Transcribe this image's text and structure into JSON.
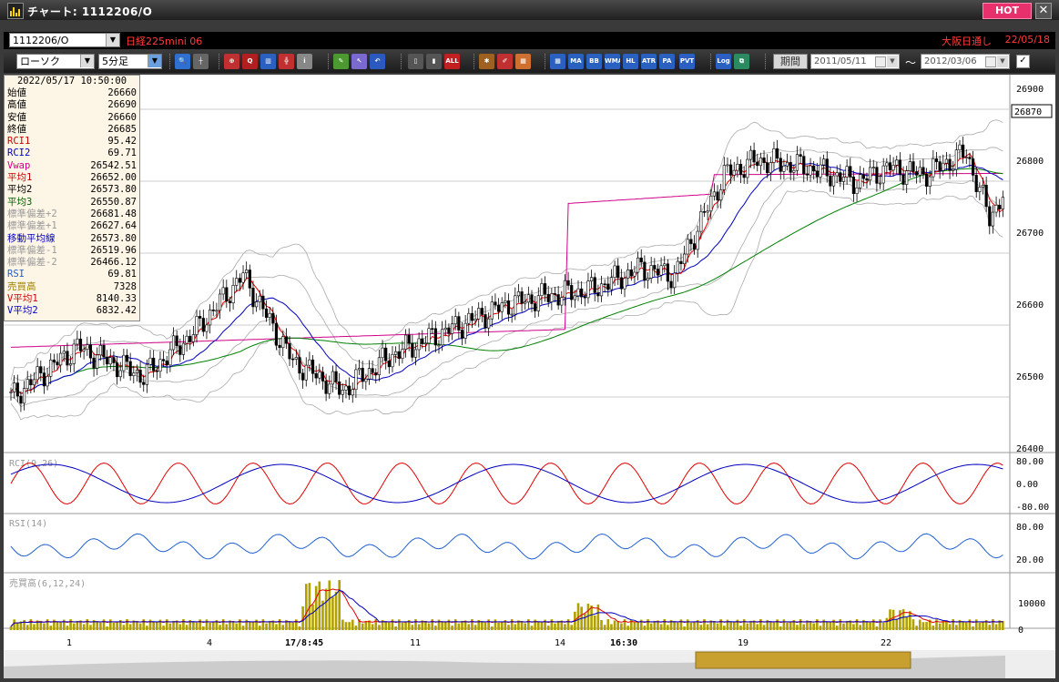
{
  "window": {
    "title": "チャート: 1112206/O",
    "hot_label": "HOT",
    "close_label": "✕"
  },
  "symbol_bar": {
    "code": "1112206/O",
    "name": "日経225mini 06",
    "market": "大阪日通し",
    "date": "22/05/18"
  },
  "toolbar": {
    "chart_type": "ローソク",
    "interval": "5分足",
    "period_label": "期間",
    "start_date": "2011/05/11",
    "end_date": "2012/03/06",
    "tilde": "〜",
    "check": "✓",
    "buttons": [
      {
        "name": "zoom-icon",
        "text": "🔍",
        "color": "#2f6fd0"
      },
      {
        "name": "crosshair-icon",
        "text": "┼",
        "color": "#666"
      },
      {
        "name": "pin-icon",
        "text": "⊕",
        "color": "#c03030"
      },
      {
        "name": "search-chart-icon",
        "text": "Q",
        "color": "#b02020"
      },
      {
        "name": "bars-icon",
        "text": "▥",
        "color": "#2a60c0"
      },
      {
        "name": "grid-icon",
        "text": "╬",
        "color": "#c03030"
      },
      {
        "name": "info-icon",
        "text": "i",
        "color": "#888"
      },
      {
        "name": "pen-icon",
        "text": "✎",
        "color": "#4a9a30"
      },
      {
        "name": "cursor-icon",
        "text": "↖",
        "color": "#7a6ad0"
      },
      {
        "name": "undo-icon",
        "text": "↶",
        "color": "#2a5ac0"
      },
      {
        "name": "candle-a-icon",
        "text": "▯",
        "color": "#555"
      },
      {
        "name": "candle-b-icon",
        "text": "▮",
        "color": "#555"
      },
      {
        "name": "all-icon",
        "text": "ALL",
        "color": "#c02020"
      },
      {
        "name": "settings-icon",
        "text": "✱",
        "color": "#a06020"
      },
      {
        "name": "brush-icon",
        "text": "✐",
        "color": "#c03030"
      },
      {
        "name": "palette-icon",
        "text": "▦",
        "color": "#d07030"
      },
      {
        "name": "ma-grid-icon",
        "text": "▦",
        "color": "#2a60c0"
      },
      {
        "name": "ma-icon",
        "text": "MA",
        "color": "#2a60c0"
      },
      {
        "name": "bb-icon",
        "text": "BB",
        "color": "#2a60c0"
      },
      {
        "name": "wma-icon",
        "text": "WMA",
        "color": "#2a60c0"
      },
      {
        "name": "hl-icon",
        "text": "HL",
        "color": "#2a60c0"
      },
      {
        "name": "atr-icon",
        "text": "ATR",
        "color": "#2a60c0"
      },
      {
        "name": "para-icon",
        "text": "PA RA",
        "color": "#2a60c0"
      },
      {
        "name": "pvt-icon",
        "text": "PVT",
        "color": "#2a60c0"
      },
      {
        "name": "log-icon",
        "text": "Log",
        "color": "#2a60c0"
      },
      {
        "name": "window-icon",
        "text": "⧉",
        "color": "#2a8a60"
      }
    ]
  },
  "info": {
    "timestamp": "2022/05/17  10:50:00",
    "rows": [
      {
        "k": "始値",
        "v": "26660",
        "c": "#000"
      },
      {
        "k": "高値",
        "v": "26690",
        "c": "#000"
      },
      {
        "k": "安値",
        "v": "26660",
        "c": "#000"
      },
      {
        "k": "終値",
        "v": "26685",
        "c": "#000"
      },
      {
        "k": "RCI1",
        "v": "95.42",
        "c": "#d00000"
      },
      {
        "k": "RCI2",
        "v": "69.71",
        "c": "#0000c0"
      },
      {
        "k": "Vwap",
        "v": "26542.51",
        "c": "#d0008a"
      },
      {
        "k": "平均1",
        "v": "26652.00",
        "c": "#d00000"
      },
      {
        "k": "平均2",
        "v": "26573.80",
        "c": "#000"
      },
      {
        "k": "平均3",
        "v": "26550.87",
        "c": "#006000"
      },
      {
        "k": "標準偏差+2",
        "v": "26681.48",
        "c": "#999"
      },
      {
        "k": "標準偏差+1",
        "v": "26627.64",
        "c": "#999"
      },
      {
        "k": "移動平均線",
        "v": "26573.80",
        "c": "#0000c0"
      },
      {
        "k": "標準偏差-1",
        "v": "26519.96",
        "c": "#999"
      },
      {
        "k": "標準偏差-2",
        "v": "26466.12",
        "c": "#999"
      },
      {
        "k": "RSI",
        "v": "69.81",
        "c": "#2060d0"
      },
      {
        "k": "売買高",
        "v": "7328",
        "c": "#a08000"
      },
      {
        "k": "V平均1",
        "v": "8140.33",
        "c": "#d00000"
      },
      {
        "k": "V平均2",
        "v": "6832.42",
        "c": "#0000c0"
      }
    ]
  },
  "price_axis": {
    "ticks": [
      "26900",
      "26800",
      "26700",
      "26600",
      "26500",
      "26400"
    ],
    "current": "26870"
  },
  "rci_panel": {
    "label": "RCI(9,26)",
    "ticks": [
      "80.00",
      "0.00",
      "-80.00"
    ]
  },
  "rsi_panel": {
    "label": "RSI(14)",
    "ticks": [
      "80.00",
      "20.00"
    ]
  },
  "vol_panel": {
    "label": "売買高(6,12,24)",
    "ticks": [
      "10000",
      "0"
    ]
  },
  "time_axis": {
    "labels": [
      "1",
      "4",
      "17/8:45",
      "11",
      "14",
      "16:30",
      "19",
      "22"
    ]
  },
  "colors": {
    "up": "#ffffff",
    "down": "#000000",
    "ma_red": "#e00000",
    "ma_blue": "#0000c0",
    "ma_green": "#008000",
    "vwap": "#d0008a",
    "band": "#aaaaaa",
    "rsi": "#2060d0",
    "volume": "#b0a000",
    "nav": "#c8a030"
  }
}
